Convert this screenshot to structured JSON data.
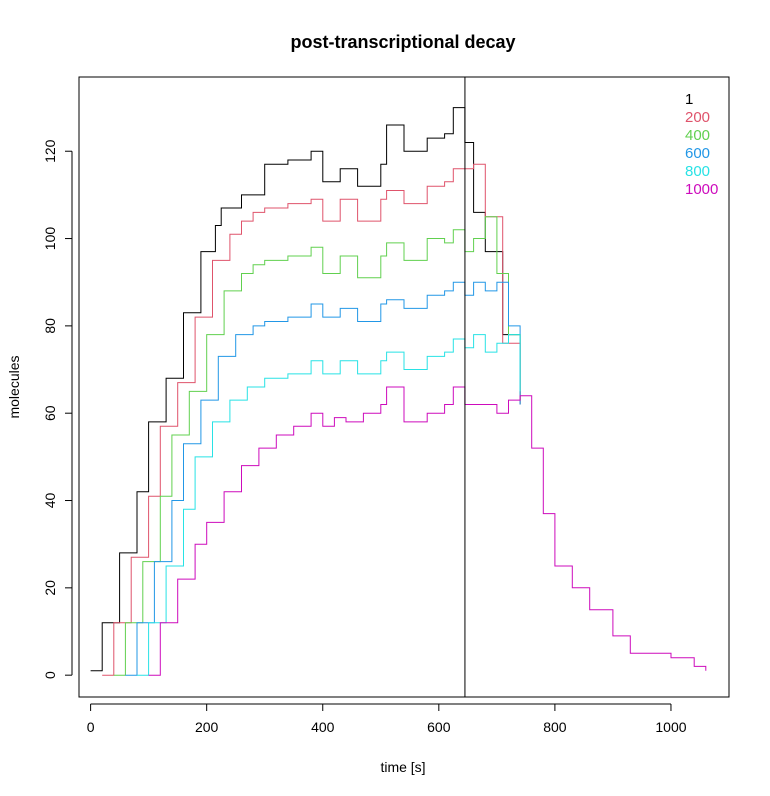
{
  "chart_data": {
    "type": "line",
    "title": "post-transcriptional decay",
    "xlabel": "time [s]",
    "ylabel": "molecules",
    "xlim": [
      -20,
      1100
    ],
    "ylim": [
      -5,
      137
    ],
    "xticks": [
      0,
      200,
      400,
      600,
      800,
      1000
    ],
    "yticks": [
      0,
      20,
      40,
      60,
      80,
      100,
      120
    ],
    "xtick_labels": [
      "0",
      "200",
      "400",
      "600",
      "800",
      "1000"
    ],
    "ytick_labels": [
      "0",
      "20",
      "40",
      "60",
      "80",
      "100",
      "120"
    ],
    "grid": false,
    "legend_position": "top-right",
    "vline_x": 645,
    "vline_color": "#000000",
    "series": [
      {
        "name": "1",
        "color": "#000000",
        "x": [
          0,
          20,
          50,
          80,
          100,
          130,
          160,
          190,
          215,
          225,
          260,
          300,
          340,
          380,
          400,
          430,
          460,
          500,
          510,
          540,
          580,
          610,
          625,
          645,
          660,
          680,
          710,
          740
        ],
        "y": [
          1,
          12,
          28,
          42,
          58,
          68,
          83,
          97,
          103,
          107,
          110,
          117,
          118,
          120,
          113,
          116,
          112,
          117,
          126,
          120,
          123,
          124,
          130,
          122,
          106,
          97,
          78,
          62
        ]
      },
      {
        "name": "200",
        "color": "#DF536B",
        "x": [
          20,
          40,
          70,
          100,
          120,
          150,
          180,
          210,
          240,
          260,
          280,
          300,
          340,
          380,
          400,
          430,
          460,
          500,
          510,
          540,
          580,
          610,
          625,
          645,
          660,
          680,
          710,
          740
        ],
        "y": [
          0,
          12,
          27,
          41,
          57,
          67,
          82,
          95,
          101,
          104,
          106,
          107,
          108,
          109,
          104,
          109,
          104,
          109,
          111,
          108,
          112,
          113,
          116,
          116,
          117,
          105,
          76,
          62
        ]
      },
      {
        "name": "400",
        "color": "#61D04F",
        "x": [
          40,
          60,
          90,
          120,
          140,
          170,
          200,
          230,
          260,
          280,
          300,
          340,
          380,
          400,
          430,
          460,
          500,
          510,
          540,
          580,
          610,
          625,
          645,
          660,
          680,
          700,
          720,
          740
        ],
        "y": [
          0,
          12,
          26,
          41,
          55,
          65,
          78,
          88,
          92,
          94,
          95,
          96,
          98,
          92,
          96,
          91,
          96,
          99,
          95,
          100,
          99,
          102,
          97,
          100,
          105,
          92,
          78,
          63
        ]
      },
      {
        "name": "600",
        "color": "#2297E6",
        "x": [
          60,
          80,
          110,
          140,
          160,
          190,
          220,
          250,
          280,
          300,
          340,
          380,
          400,
          430,
          460,
          500,
          510,
          540,
          580,
          610,
          625,
          645,
          660,
          680,
          700,
          720,
          740
        ],
        "y": [
          0,
          12,
          26,
          40,
          53,
          63,
          73,
          78,
          80,
          81,
          82,
          85,
          82,
          84,
          81,
          85,
          86,
          84,
          87,
          88,
          90,
          87,
          90,
          88,
          90,
          80,
          62
        ]
      },
      {
        "name": "800",
        "color": "#28E2E5",
        "x": [
          80,
          100,
          130,
          160,
          180,
          210,
          240,
          270,
          300,
          340,
          380,
          400,
          430,
          460,
          500,
          510,
          540,
          580,
          610,
          625,
          645,
          660,
          680,
          700,
          720,
          740
        ],
        "y": [
          0,
          12,
          25,
          38,
          50,
          58,
          63,
          66,
          68,
          69,
          72,
          69,
          72,
          69,
          72,
          74,
          70,
          73,
          74,
          77,
          75,
          78,
          74,
          76,
          78,
          65
        ]
      },
      {
        "name": "1000",
        "color": "#CD0BBC",
        "x": [
          100,
          120,
          150,
          180,
          200,
          230,
          260,
          290,
          320,
          350,
          380,
          400,
          420,
          440,
          470,
          500,
          510,
          540,
          580,
          610,
          625,
          645,
          660,
          680,
          700,
          720,
          740,
          760,
          780,
          800,
          830,
          860,
          900,
          930,
          960,
          1000,
          1040,
          1060
        ],
        "y": [
          0,
          12,
          22,
          30,
          35,
          42,
          48,
          52,
          55,
          57,
          60,
          57,
          59,
          58,
          60,
          62,
          66,
          58,
          60,
          62,
          66,
          62,
          62,
          62,
          60,
          63,
          64,
          52,
          37,
          25,
          20,
          15,
          9,
          5,
          5,
          4,
          2,
          1
        ]
      }
    ]
  }
}
